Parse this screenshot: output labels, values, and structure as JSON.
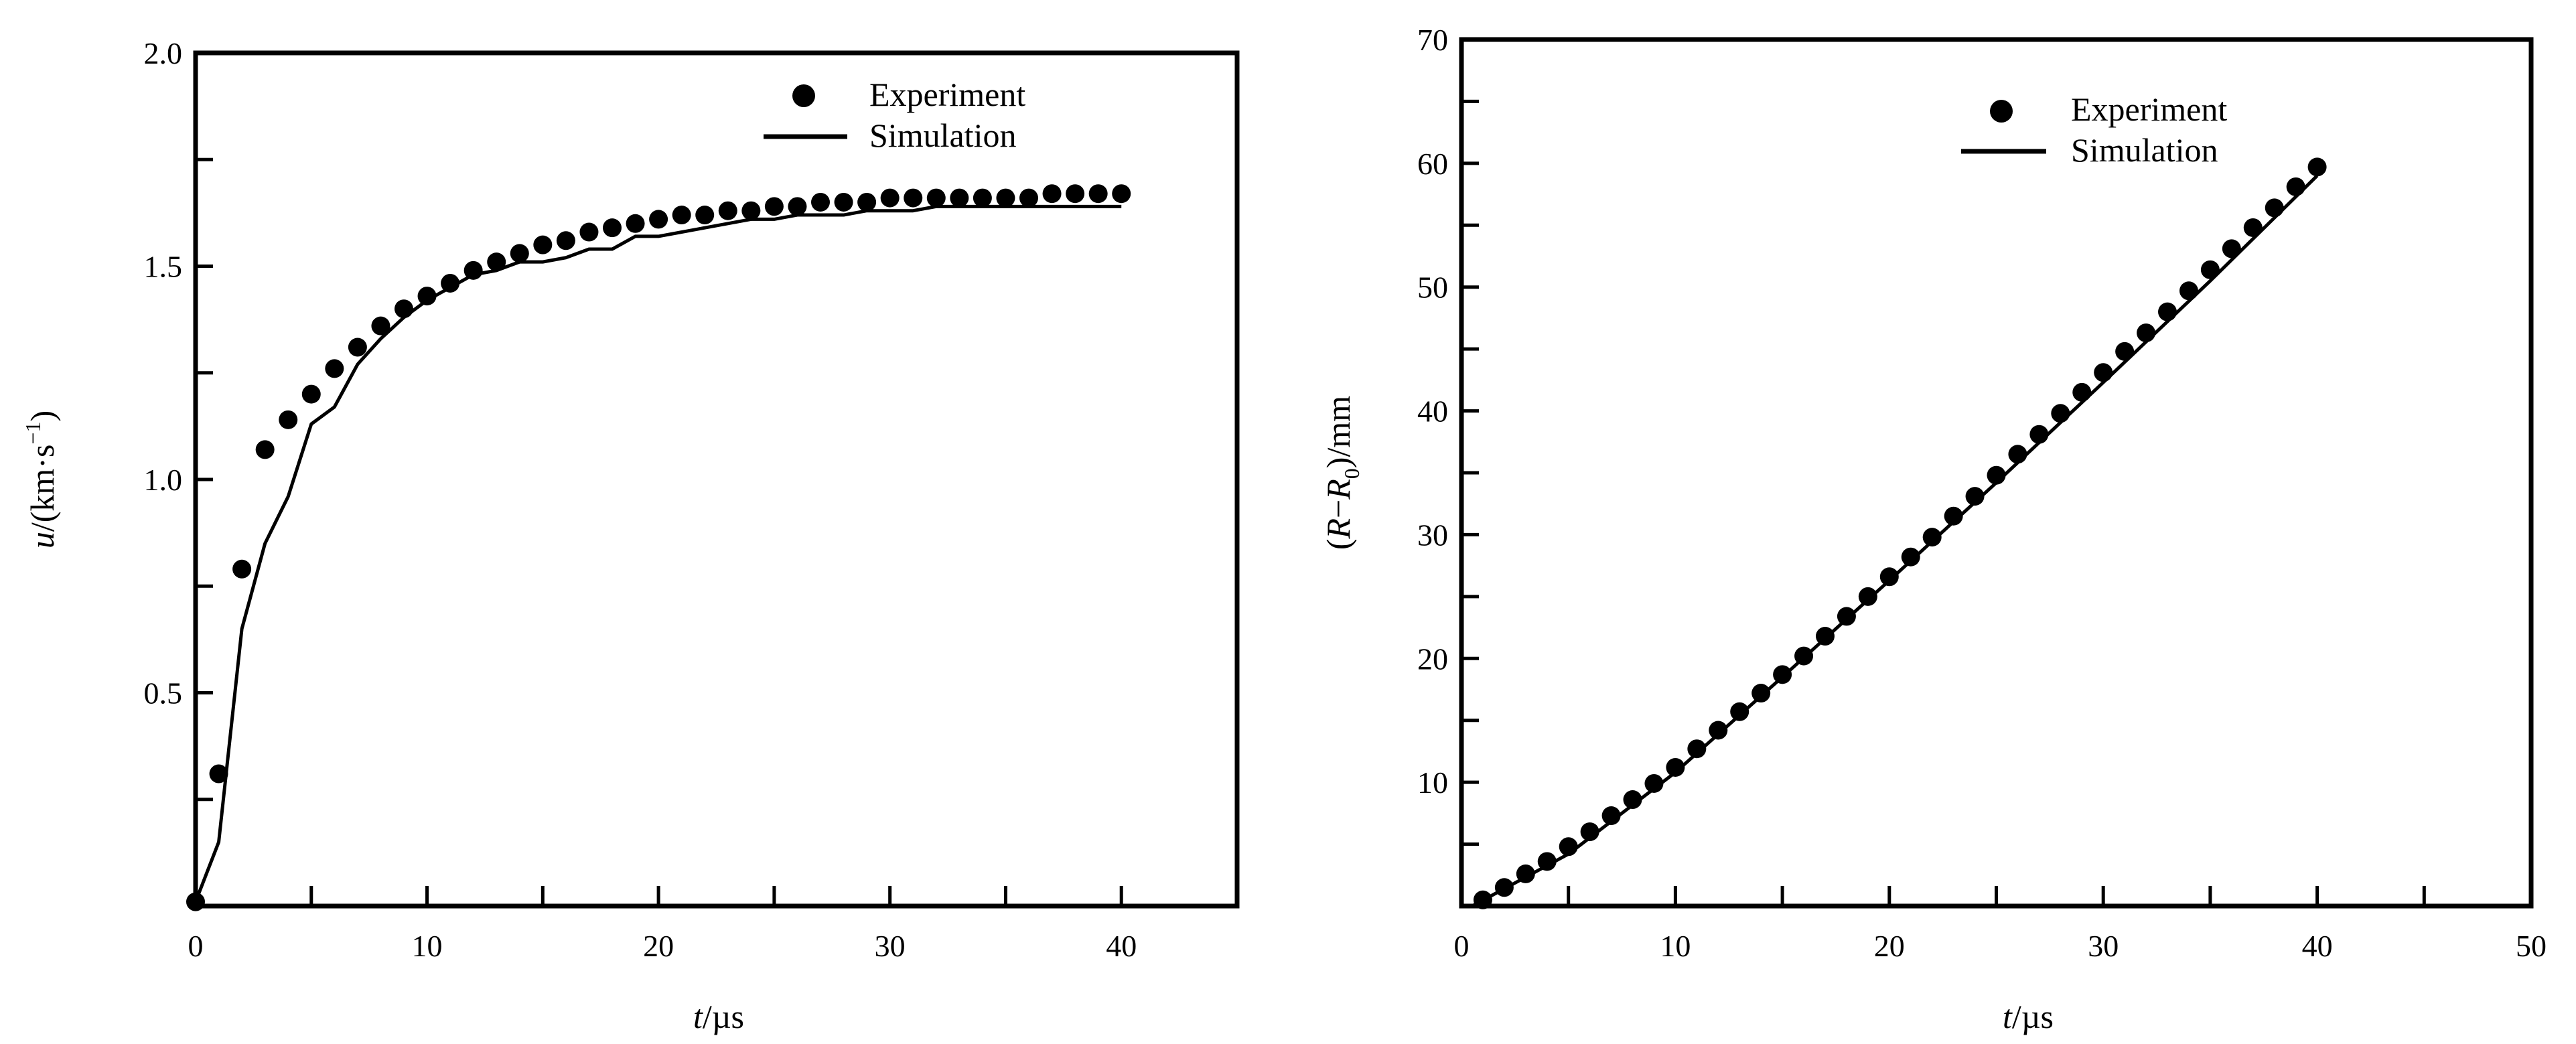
{
  "colors": {
    "ink": "#000000",
    "background": "#ffffff"
  },
  "chart_data": [
    {
      "type": "line",
      "title": "",
      "xlabel_italic": "t",
      "xlabel_unit": "/µs",
      "ylabel_italic": "u",
      "ylabel_unit": "/(km·s",
      "ylabel_sup": "−1",
      "ylabel_close": ")",
      "xlim": [
        0,
        45
      ],
      "ylim": [
        0,
        2.0
      ],
      "x_ticks": [
        0,
        10,
        20,
        30,
        40
      ],
      "x_tick_labels": [
        "0",
        "10",
        "20",
        "30",
        "40"
      ],
      "y_ticks": [
        0.5,
        1.0,
        1.5,
        2.0
      ],
      "y_tick_labels": [
        "0.5",
        "1.0",
        "1.5",
        "2.0"
      ],
      "grid": false,
      "legend_position": "top-right",
      "series": [
        {
          "name": "Experiment",
          "style": "markers",
          "x": [
            0,
            1,
            2,
            3,
            4,
            5,
            6,
            7,
            8,
            9,
            10,
            11,
            12,
            13,
            14,
            15,
            16,
            17,
            18,
            19,
            20,
            21,
            22,
            23,
            24,
            25,
            26,
            27,
            28,
            29,
            30,
            31,
            32,
            33,
            34,
            35,
            36,
            37,
            38,
            39,
            40
          ],
          "y": [
            0.01,
            0.31,
            0.79,
            1.07,
            1.14,
            1.2,
            1.26,
            1.31,
            1.36,
            1.4,
            1.43,
            1.46,
            1.49,
            1.51,
            1.53,
            1.55,
            1.56,
            1.58,
            1.59,
            1.6,
            1.61,
            1.62,
            1.62,
            1.63,
            1.63,
            1.64,
            1.64,
            1.65,
            1.65,
            1.65,
            1.66,
            1.66,
            1.66,
            1.66,
            1.66,
            1.66,
            1.66,
            1.67,
            1.67,
            1.67,
            1.67
          ]
        },
        {
          "name": "Simulation",
          "style": "line",
          "x": [
            0,
            1,
            2,
            3,
            4,
            5,
            6,
            7,
            8,
            9,
            10,
            11,
            12,
            13,
            14,
            15,
            16,
            17,
            18,
            19,
            20,
            21,
            22,
            23,
            24,
            25,
            26,
            27,
            28,
            29,
            30,
            31,
            32,
            33,
            34,
            35,
            36,
            37,
            38,
            39,
            40
          ],
          "y": [
            0.01,
            0.15,
            0.65,
            0.85,
            0.96,
            1.13,
            1.17,
            1.27,
            1.33,
            1.38,
            1.42,
            1.45,
            1.48,
            1.49,
            1.51,
            1.51,
            1.52,
            1.54,
            1.54,
            1.57,
            1.57,
            1.58,
            1.59,
            1.6,
            1.61,
            1.61,
            1.62,
            1.62,
            1.62,
            1.63,
            1.63,
            1.63,
            1.64,
            1.64,
            1.64,
            1.64,
            1.64,
            1.64,
            1.64,
            1.64,
            1.64
          ]
        }
      ]
    },
    {
      "type": "line",
      "title": "",
      "xlabel_italic": "t",
      "xlabel_unit": "/µs",
      "ylabel_open": "(",
      "ylabel_italic": "R",
      "ylabel_minus": "−",
      "ylabel_italic2": "R",
      "ylabel_sub": "0",
      "ylabel_unit": ")/mm",
      "xlim": [
        0,
        50
      ],
      "ylim": [
        0,
        70
      ],
      "x_ticks": [
        0,
        10,
        20,
        30,
        40,
        50
      ],
      "x_tick_labels": [
        "0",
        "10",
        "20",
        "30",
        "40",
        "50"
      ],
      "y_ticks": [
        10,
        20,
        30,
        40,
        50,
        60,
        70
      ],
      "y_tick_labels": [
        "10",
        "20",
        "30",
        "40",
        "50",
        "60",
        "70"
      ],
      "grid": false,
      "legend_position": "top-right",
      "series": [
        {
          "name": "Experiment",
          "style": "markers",
          "x": [
            1,
            2,
            3,
            4,
            5,
            6,
            7,
            8,
            9,
            10,
            11,
            12,
            13,
            14,
            15,
            16,
            17,
            18,
            19,
            20,
            21,
            22,
            23,
            24,
            25,
            26,
            27,
            28,
            29,
            30,
            31,
            32,
            33,
            34,
            35,
            36,
            37,
            38,
            39,
            40
          ],
          "y": [
            0.5,
            1.5,
            2.6,
            3.6,
            4.8,
            6.0,
            7.3,
            8.6,
            9.9,
            11.2,
            12.7,
            14.2,
            15.7,
            17.2,
            18.7,
            20.2,
            21.8,
            23.4,
            25.0,
            26.6,
            28.2,
            29.8,
            31.5,
            33.1,
            34.8,
            36.5,
            38.1,
            39.8,
            41.5,
            43.1,
            44.8,
            46.3,
            48.0,
            49.7,
            51.4,
            53.1,
            54.8,
            56.4,
            58.1,
            59.7
          ]
        },
        {
          "name": "Simulation",
          "style": "line",
          "x": [
            0.5,
            5,
            10,
            15,
            20,
            25,
            30,
            35,
            40
          ],
          "y": [
            0,
            4.2,
            10.8,
            18.5,
            26.3,
            34.2,
            42.3,
            50.5,
            59.0
          ]
        }
      ]
    }
  ]
}
